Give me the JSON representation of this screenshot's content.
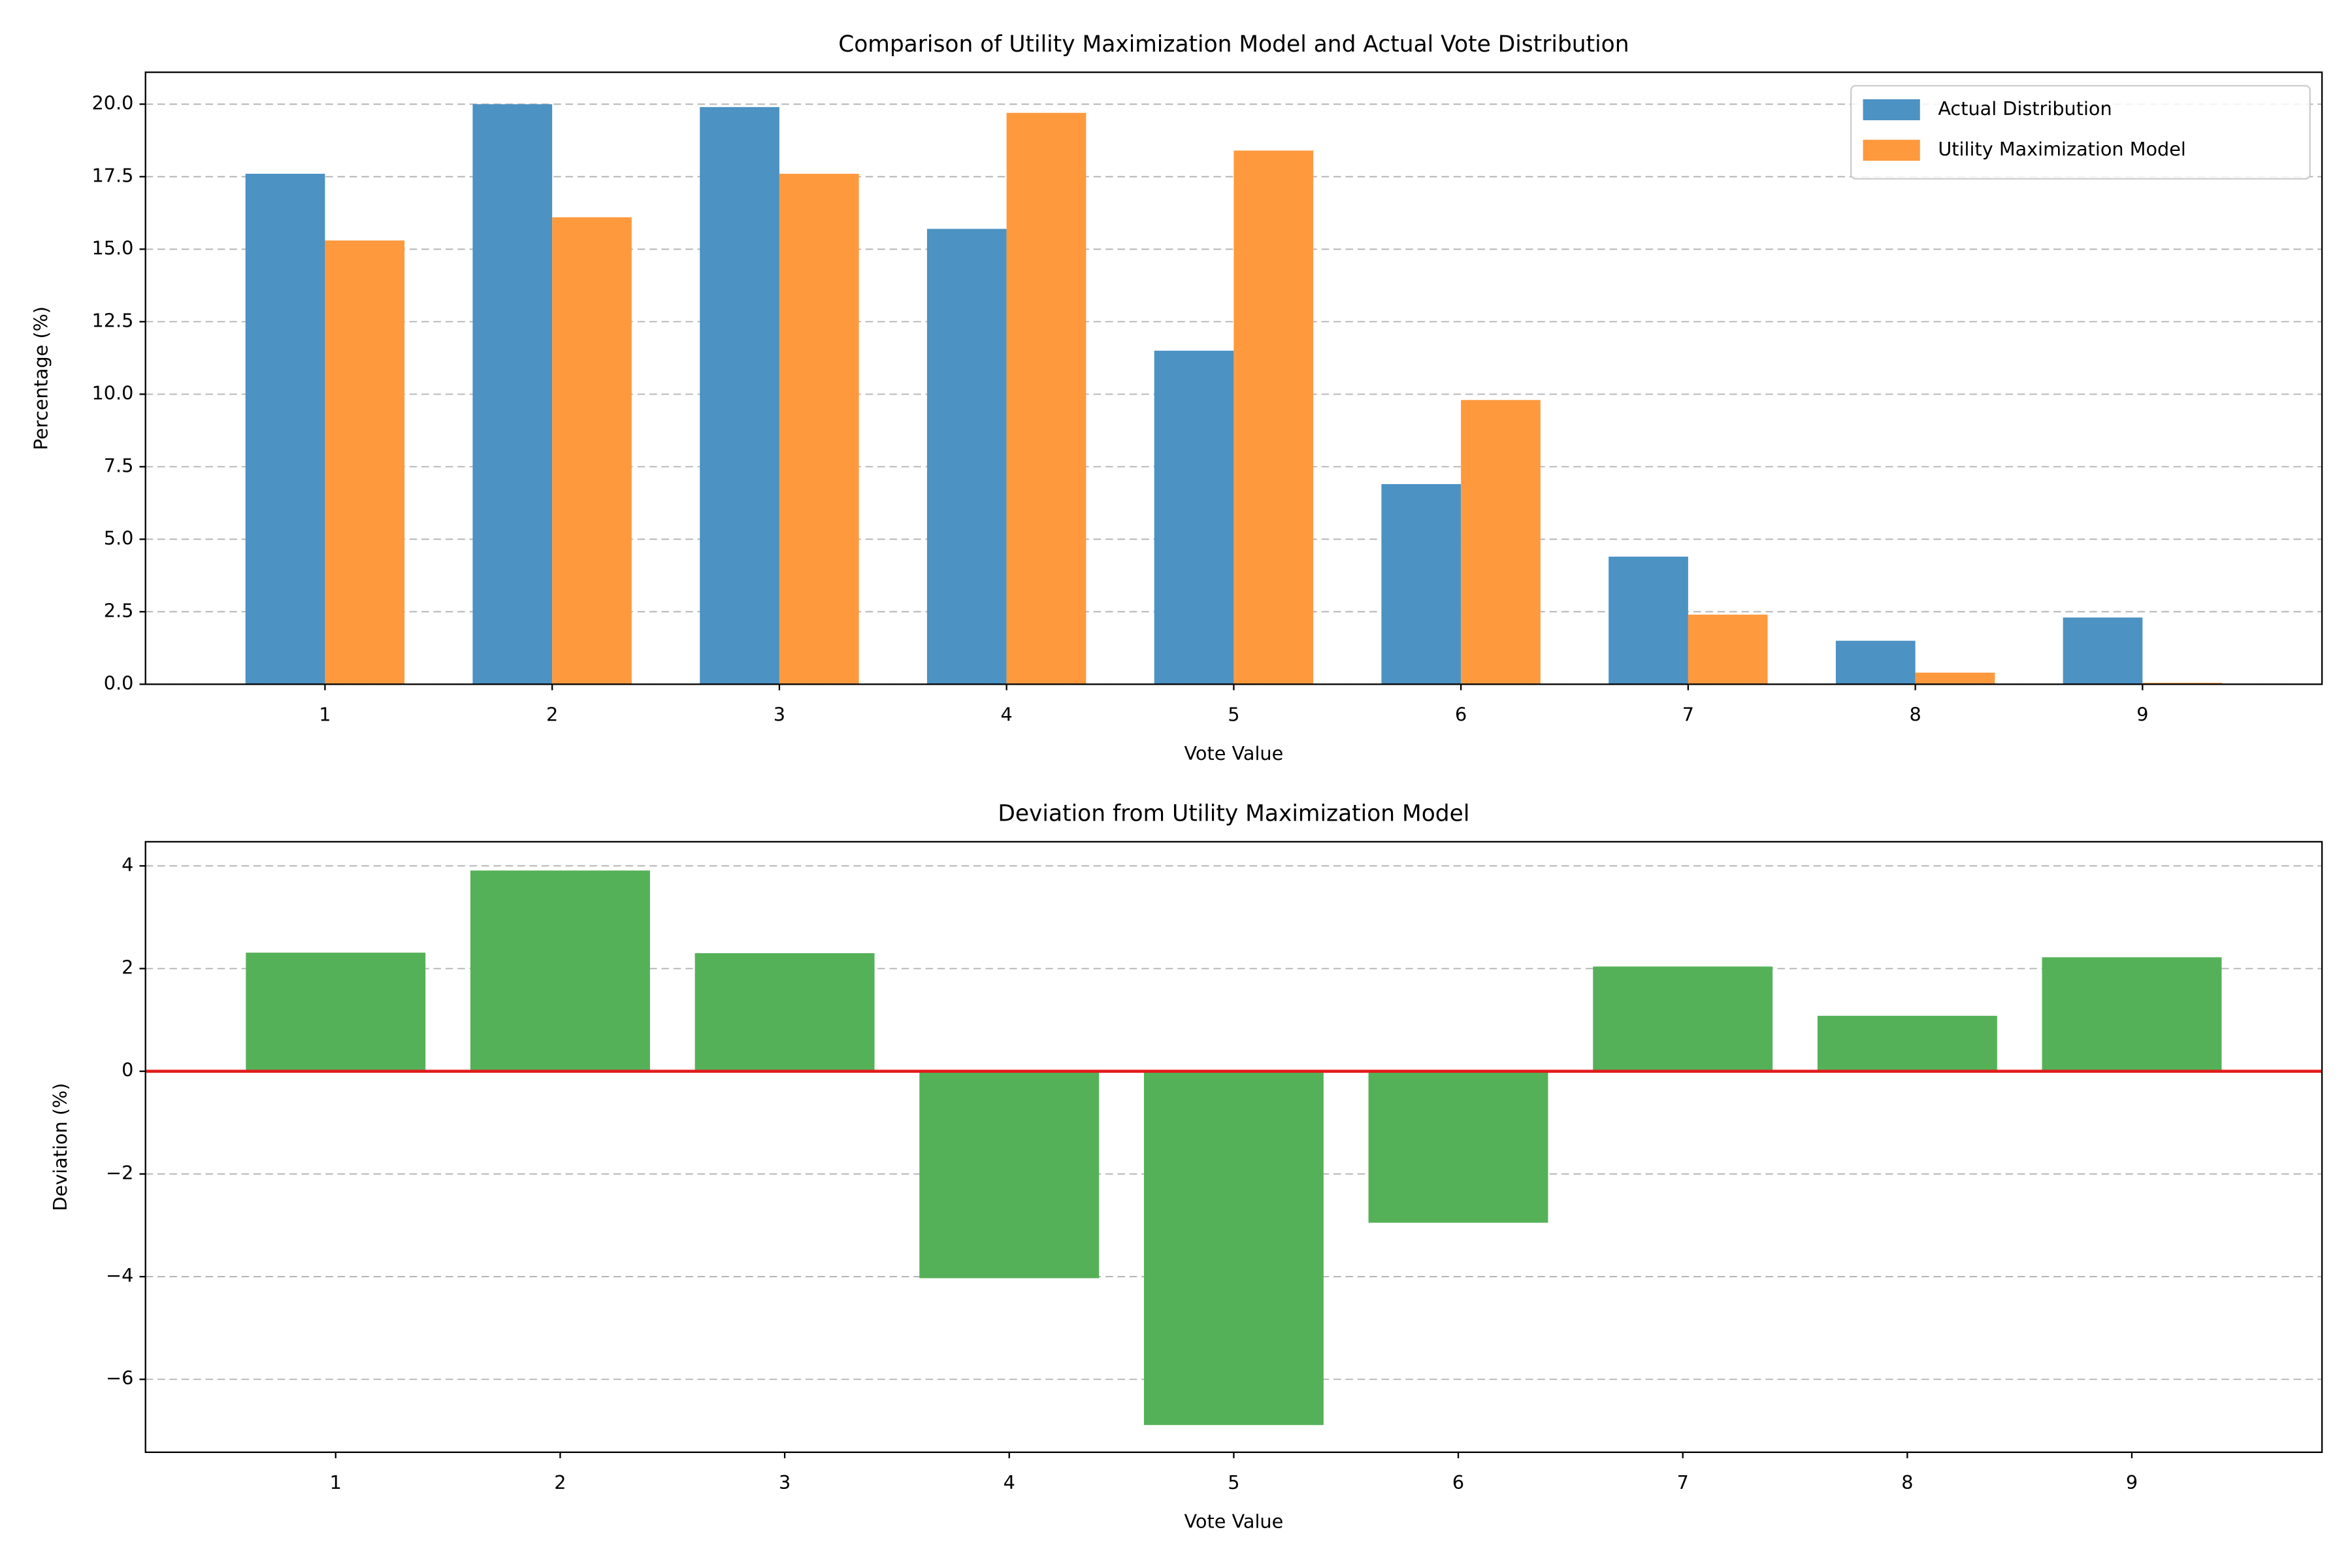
{
  "chart_data": [
    {
      "type": "grouped_bar",
      "title": "Comparison of Utility Maximization Model and Actual Vote Distribution",
      "x_label": "Vote Value",
      "y_label": "Percentage (%)",
      "categories": [
        "1",
        "2",
        "3",
        "4",
        "5",
        "6",
        "7",
        "8",
        "9"
      ],
      "series": [
        {
          "name": "Actual Distribution",
          "color": "#4c92c3",
          "values": [
            17.6,
            20.0,
            19.9,
            15.7,
            11.5,
            6.9,
            4.4,
            1.5,
            2.3
          ]
        },
        {
          "name": "Utility Maximization Model",
          "color": "#ff993e",
          "values": [
            15.3,
            16.1,
            17.6,
            19.7,
            18.4,
            9.8,
            2.4,
            0.4,
            0.05
          ]
        }
      ],
      "ylim": [
        0,
        21.1
      ],
      "yticks": [
        {
          "value": 0,
          "label": "0.0"
        },
        {
          "value": 2.5,
          "label": "2.5"
        },
        {
          "value": 5,
          "label": "5.0"
        },
        {
          "value": 7.5,
          "label": "7.5"
        },
        {
          "value": 10,
          "label": "10.0"
        },
        {
          "value": 12.5,
          "label": "12.5"
        },
        {
          "value": 15,
          "label": "15.0"
        },
        {
          "value": 17.5,
          "label": "17.5"
        },
        {
          "value": 20,
          "label": "20.0"
        }
      ],
      "grid": true,
      "legend": "upper right"
    },
    {
      "type": "bar",
      "title": "Deviation from Utility Maximization Model",
      "x_label": "Vote Value",
      "y_label": "Deviation (%)",
      "categories": [
        "1",
        "2",
        "3",
        "4",
        "5",
        "6",
        "7",
        "8",
        "9"
      ],
      "values": [
        2.31,
        3.91,
        2.3,
        -4.03,
        -6.89,
        -2.95,
        2.04,
        1.08,
        2.22
      ],
      "color": "#55b158",
      "reference_line": {
        "value": 0,
        "color": "#e31a1c"
      },
      "ylim": [
        -7.42,
        4.47
      ],
      "yticks": [
        {
          "value": -6,
          "label": "−6"
        },
        {
          "value": -4,
          "label": "−4"
        },
        {
          "value": -2,
          "label": "−2"
        },
        0,
        2,
        4
      ],
      "grid": true
    }
  ]
}
